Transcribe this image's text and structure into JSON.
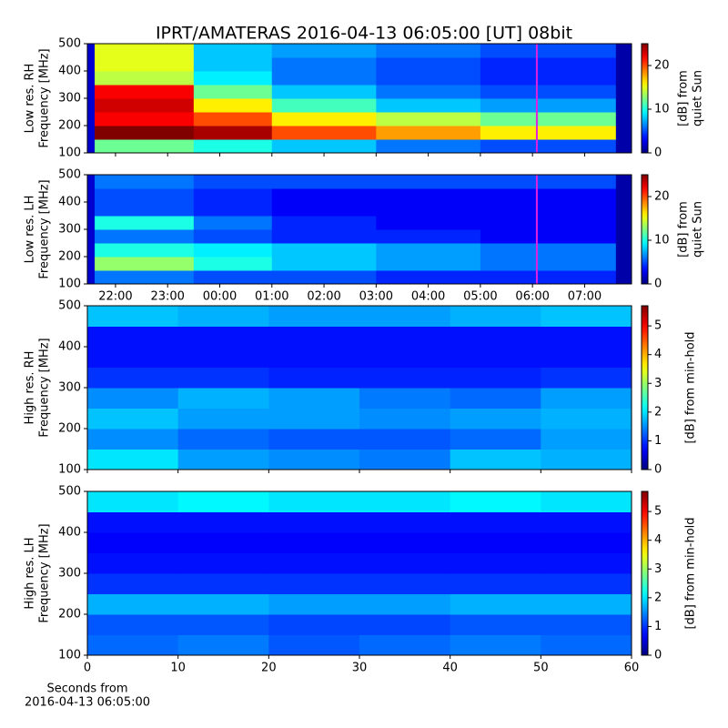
{
  "chart_data": [
    {
      "type": "heatmap",
      "title": "IPRT/AMATERAS 2016-04-13 06:05:00 [UT]   08bit",
      "ylabel": [
        "Low res. RH",
        "Frequency [MHz]"
      ],
      "colorbar_label": [
        "[dB] from",
        "quiet Sun"
      ],
      "colormap": "jet",
      "xlim": [
        21.46,
        31.9
      ],
      "xticks": [
        {
          "value": 22,
          "label": "22:00"
        },
        {
          "value": 23,
          "label": "23:00"
        },
        {
          "value": 24,
          "label": "00:00"
        },
        {
          "value": 25,
          "label": "01:00"
        },
        {
          "value": 26,
          "label": "02:00"
        },
        {
          "value": 27,
          "label": "03:00"
        },
        {
          "value": 28,
          "label": "04:00"
        },
        {
          "value": 29,
          "label": "05:00"
        },
        {
          "value": 30,
          "label": "06:00"
        },
        {
          "value": 31,
          "label": "07:00"
        }
      ],
      "show_xticklabels": false,
      "ylim": [
        100,
        500
      ],
      "yticks": [
        100,
        200,
        300,
        400,
        500
      ],
      "clim": [
        0,
        25
      ],
      "cticks": [
        0,
        10,
        20
      ],
      "marker_x": 30.083,
      "marker_color": "#e020e0",
      "x_edges": [
        21.46,
        21.6,
        23.5,
        25,
        27,
        29,
        31.6,
        31.9
      ],
      "y_edges": [
        100,
        150,
        200,
        250,
        300,
        350,
        400,
        450,
        500
      ],
      "z": [
        [
          2,
          12,
          10,
          8,
          6,
          5,
          1
        ],
        [
          2,
          25,
          24,
          20,
          18,
          16,
          1
        ],
        [
          2,
          22,
          20,
          16,
          14,
          12,
          1
        ],
        [
          2,
          23,
          16,
          11,
          8,
          7,
          1
        ],
        [
          2,
          22,
          12,
          8,
          6,
          5,
          1
        ],
        [
          2,
          14,
          9,
          6,
          5,
          4,
          1
        ],
        [
          2,
          15,
          8,
          6,
          5,
          4,
          1
        ],
        [
          2,
          15,
          8,
          7,
          6,
          5,
          1
        ]
      ]
    },
    {
      "type": "heatmap",
      "ylabel": [
        "Low res. LH",
        "Frequency [MHz]"
      ],
      "colorbar_label": [
        "[dB] from",
        "quiet Sun"
      ],
      "colormap": "jet",
      "xlim": [
        21.46,
        31.9
      ],
      "xticks": [
        {
          "value": 22,
          "label": "22:00"
        },
        {
          "value": 23,
          "label": "23:00"
        },
        {
          "value": 24,
          "label": "00:00"
        },
        {
          "value": 25,
          "label": "01:00"
        },
        {
          "value": 26,
          "label": "02:00"
        },
        {
          "value": 27,
          "label": "03:00"
        },
        {
          "value": 28,
          "label": "04:00"
        },
        {
          "value": 29,
          "label": "05:00"
        },
        {
          "value": 30,
          "label": "06:00"
        },
        {
          "value": 31,
          "label": "07:00"
        }
      ],
      "show_xticklabels": true,
      "ylim": [
        100,
        500
      ],
      "yticks": [
        100,
        200,
        300,
        400,
        500
      ],
      "clim": [
        0,
        25
      ],
      "cticks": [
        0,
        10,
        20
      ],
      "marker_x": 30.083,
      "marker_color": "#e020e0",
      "x_edges": [
        21.46,
        21.6,
        23.5,
        25,
        27,
        29,
        31.6,
        31.9
      ],
      "y_edges": [
        100,
        150,
        200,
        250,
        300,
        350,
        400,
        450,
        500
      ],
      "z": [
        [
          2,
          6,
          5,
          5,
          4,
          4,
          1
        ],
        [
          2,
          13,
          10,
          8,
          7,
          6,
          1
        ],
        [
          2,
          10,
          9,
          8,
          7,
          6,
          1
        ],
        [
          2,
          6,
          5,
          4,
          4,
          3,
          1
        ],
        [
          2,
          10,
          6,
          4,
          3,
          3,
          1
        ],
        [
          2,
          5,
          4,
          3,
          3,
          3,
          1
        ],
        [
          2,
          5,
          4,
          3,
          3,
          3,
          1
        ],
        [
          2,
          6,
          5,
          5,
          5,
          5,
          1
        ]
      ]
    },
    {
      "type": "heatmap",
      "ylabel": [
        "High res. RH",
        "Frequency [MHz]"
      ],
      "colorbar_label": [
        "[dB] from min-hold"
      ],
      "colormap": "jet",
      "xlim": [
        0,
        60
      ],
      "xticks": [
        0,
        10,
        20,
        30,
        40,
        50,
        60
      ],
      "show_xticklabels": false,
      "ylim": [
        100,
        500
      ],
      "yticks": [
        100,
        200,
        300,
        400,
        500
      ],
      "clim": [
        0,
        5.7
      ],
      "cticks": [
        0,
        1,
        2,
        3,
        4,
        5
      ],
      "x_edges": [
        0,
        10,
        20,
        30,
        40,
        50,
        60
      ],
      "y_edges": [
        100,
        150,
        200,
        250,
        300,
        350,
        400,
        450,
        500
      ],
      "z": [
        [
          2.0,
          1.6,
          1.5,
          1.4,
          1.8,
          1.7
        ],
        [
          1.5,
          1.3,
          1.2,
          1.2,
          1.3,
          1.6
        ],
        [
          1.8,
          1.6,
          1.6,
          1.5,
          1.6,
          1.7
        ],
        [
          1.5,
          1.7,
          1.6,
          1.4,
          1.3,
          1.6
        ],
        [
          1.0,
          1.0,
          0.9,
          0.9,
          0.9,
          1.0
        ],
        [
          0.8,
          0.8,
          0.8,
          0.8,
          0.8,
          0.8
        ],
        [
          0.8,
          0.8,
          0.8,
          0.8,
          0.8,
          0.8
        ],
        [
          1.8,
          1.7,
          1.6,
          1.6,
          1.7,
          1.8
        ]
      ]
    },
    {
      "type": "heatmap",
      "ylabel": [
        "High res. LH",
        "Frequency [MHz]"
      ],
      "colorbar_label": [
        "[dB] from min-hold"
      ],
      "colormap": "jet",
      "xlim": [
        0,
        60
      ],
      "xticks": [
        0,
        10,
        20,
        30,
        40,
        50,
        60
      ],
      "show_xticklabels": true,
      "xlabel": [
        "Seconds from",
        "2016-04-13 06:05:00"
      ],
      "ylim": [
        100,
        500
      ],
      "yticks": [
        100,
        200,
        300,
        400,
        500
      ],
      "clim": [
        0,
        5.7
      ],
      "cticks": [
        0,
        1,
        2,
        3,
        4,
        5
      ],
      "x_edges": [
        0,
        10,
        20,
        30,
        40,
        50,
        60
      ],
      "y_edges": [
        100,
        150,
        200,
        250,
        300,
        350,
        400,
        450,
        500
      ],
      "z": [
        [
          1.3,
          1.4,
          1.2,
          1.3,
          1.4,
          1.3
        ],
        [
          1.2,
          1.2,
          1.1,
          1.1,
          1.2,
          1.2
        ],
        [
          1.7,
          1.7,
          1.6,
          1.6,
          1.7,
          1.7
        ],
        [
          1.0,
          1.0,
          1.0,
          1.0,
          1.0,
          1.0
        ],
        [
          0.8,
          0.8,
          0.8,
          0.8,
          0.8,
          0.8
        ],
        [
          0.7,
          0.7,
          0.7,
          0.7,
          0.7,
          0.7
        ],
        [
          0.8,
          0.8,
          0.8,
          0.8,
          0.8,
          0.8
        ],
        [
          2.0,
          2.1,
          2.0,
          2.0,
          2.1,
          2.0
        ]
      ]
    }
  ]
}
